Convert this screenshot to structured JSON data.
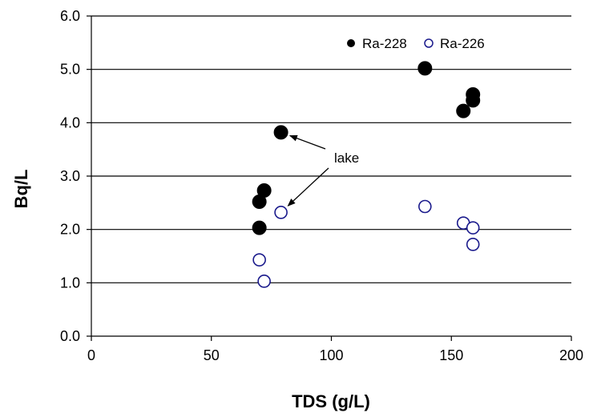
{
  "chart_data": {
    "type": "scatter",
    "xlabel": "TDS (g/L)",
    "ylabel": "Bq/L",
    "xlim": [
      0,
      200
    ],
    "ylim": [
      0,
      6
    ],
    "x_ticks": [
      0,
      50,
      100,
      150,
      200
    ],
    "y_ticks": [
      0,
      1,
      2,
      3,
      4,
      5,
      6
    ],
    "x_tick_labels": [
      "0",
      "50",
      "100",
      "150",
      "200"
    ],
    "y_tick_labels": [
      "0.0",
      "1.0",
      "2.0",
      "3.0",
      "4.0",
      "5.0",
      "6.0"
    ],
    "grid": "horizontal",
    "legend_position": "top-right",
    "series": [
      {
        "name": "Ra-228",
        "marker": "filled-circle",
        "color": "#000000",
        "points": [
          {
            "x": 70,
            "y": 2.03
          },
          {
            "x": 70,
            "y": 2.52
          },
          {
            "x": 72,
            "y": 2.73
          },
          {
            "x": 79,
            "y": 3.82
          },
          {
            "x": 139,
            "y": 5.02
          },
          {
            "x": 155,
            "y": 4.22
          },
          {
            "x": 159,
            "y": 4.42
          },
          {
            "x": 159,
            "y": 4.53
          }
        ]
      },
      {
        "name": "Ra-226",
        "marker": "open-circle",
        "color": "#1a1a8c",
        "points": [
          {
            "x": 70,
            "y": 1.43
          },
          {
            "x": 72,
            "y": 1.03
          },
          {
            "x": 79,
            "y": 2.32
          },
          {
            "x": 139,
            "y": 2.43
          },
          {
            "x": 155,
            "y": 2.12
          },
          {
            "x": 159,
            "y": 2.03
          },
          {
            "x": 159,
            "y": 1.72
          }
        ]
      }
    ],
    "annotations": [
      {
        "text": "lake",
        "arrows_to": [
          {
            "x": 79,
            "y": 3.82
          },
          {
            "x": 79,
            "y": 2.32
          }
        ]
      }
    ]
  }
}
